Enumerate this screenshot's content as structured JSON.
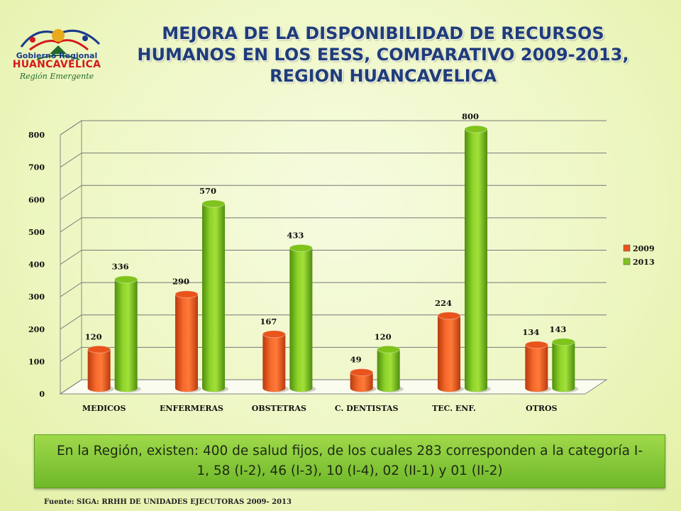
{
  "logo": {
    "line1": "Gobierno Regional",
    "line2": "HUANCAVELICA",
    "line3": "Región Emergente"
  },
  "page_title": "MEJORA DE LA DISPONIBILIDAD DE RECURSOS HUMANOS EN LOS EESS, COMPARATIVO 2009-2013, REGION HUANCAVELICA",
  "note": "En la Región, existen: 400 de salud fijos, de los cuales 283 corresponden a la categoría I-1, 58 (I-2), 46 (I-3), 10 (I-4), 02 (II-1) y 01 (II-2)",
  "source": "Fuente: SIGA: RRHH DE UNIDADES EJECUTORAS 2009- 2013",
  "colors": {
    "s2009": "#e8541c",
    "s2013": "#7fc31c"
  },
  "chart_data": {
    "type": "bar",
    "title": "",
    "xlabel": "",
    "ylabel": "",
    "categories": [
      "MEDICOS",
      "ENFERMERAS",
      "OBSTETRAS",
      "C. DENTISTAS",
      "TEC. ENF.",
      "OTROS"
    ],
    "series": [
      {
        "name": "2009",
        "values": [
          120,
          290,
          167,
          49,
          224,
          134
        ]
      },
      {
        "name": "2013",
        "values": [
          336,
          570,
          433,
          120,
          800,
          143
        ]
      }
    ],
    "yticks": [
      0,
      100,
      200,
      300,
      400,
      500,
      600,
      700,
      800
    ],
    "ylim": [
      0,
      800
    ],
    "grid": true,
    "legend": "right"
  }
}
